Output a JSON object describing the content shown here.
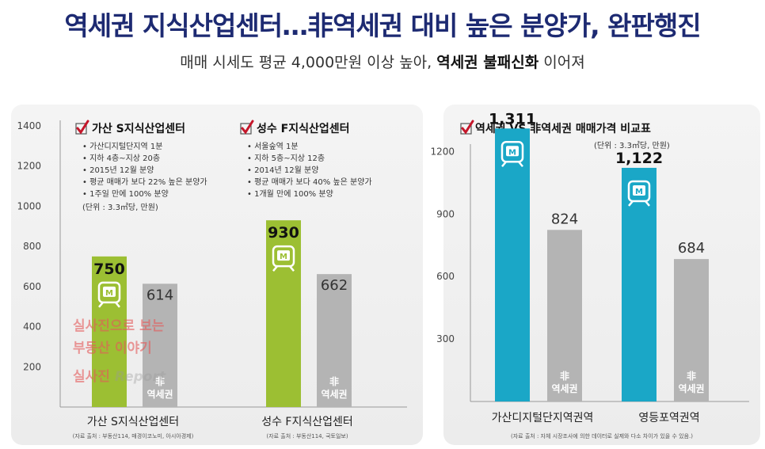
{
  "header": {
    "title": "역세권 지식산업센터…非역세권 대비 높은 분양가, 완판행진",
    "subtitle_part1": "매매 시세도 평균 4,000만원 이상 높아, ",
    "subtitle_bold": "역세권 불패신화",
    "subtitle_part2": " 이어져"
  },
  "colors": {
    "green": "#9cbf33",
    "gray": "#b4b4b4",
    "cyan": "#1aa7c7",
    "check_red": "#c5162a",
    "title_navy": "#1d2a72"
  },
  "chart_data": [
    {
      "type": "bar",
      "ylim": [
        0,
        1400
      ],
      "yticks": [
        200,
        400,
        600,
        800,
        1000,
        1200,
        1400
      ],
      "categories": [
        "가산 S지식산업센터",
        "성수 F지식산업센터"
      ],
      "series": [
        {
          "values": [
            750,
            930
          ],
          "labels": [
            "750",
            "930"
          ]
        },
        {
          "values": [
            614,
            662
          ],
          "labels": [
            "614",
            "662"
          ]
        }
      ],
      "in_bar_label": [
        "非",
        "역세권"
      ],
      "info_boxes": [
        {
          "title": "가산 S지식산업센터",
          "lines": [
            "• 가산디지털단지역 1분",
            "• 지하 4층~지상 20층",
            "• 2015년 12월 분양",
            "• 평균 매매가 보다 22% 높은 분양가",
            "• 1주일 만에 100% 분양"
          ],
          "unit": "(단위 : 3.3㎡당, 만원)"
        },
        {
          "title": "성수 F지식산업센터",
          "lines": [
            "• 서울숲역 1분",
            "• 지하 5층~지상 12층",
            "• 2014년 12월 분양",
            "• 평균 매매가 보다 40% 높은 분양가",
            "• 1개월 만에 100% 분양"
          ]
        }
      ],
      "sources": [
        "(자료 출처 : 부동산114, 매경이코노미, 아시아경제)",
        "(자료 출처 : 부동산114, 국토일보)"
      ]
    },
    {
      "type": "bar",
      "title": "역세권 VS 非역세권 매매가격 비교표",
      "unit": "(단위 : 3.3㎡당, 만원)",
      "ylim": [
        0,
        1350
      ],
      "yticks": [
        300,
        600,
        900,
        1200
      ],
      "categories": [
        "가산디지털단지역권역",
        "영등포역권역"
      ],
      "series": [
        {
          "values": [
            1311,
            1122
          ],
          "labels": [
            "1,311",
            "1,122"
          ]
        },
        {
          "values": [
            824,
            684
          ],
          "labels": [
            "824",
            "684"
          ]
        }
      ],
      "in_bar_label": [
        "非",
        "역세권"
      ],
      "source": "(자료 출처 : 자체 시장조사에 의한 데이터로 실제와 다소 차이가 있을 수 있음.)"
    }
  ],
  "watermark": {
    "line1": "실사진으로 보는",
    "line2": "부동산 이야기",
    "line3a": "실사진",
    "line3b": " Report"
  }
}
